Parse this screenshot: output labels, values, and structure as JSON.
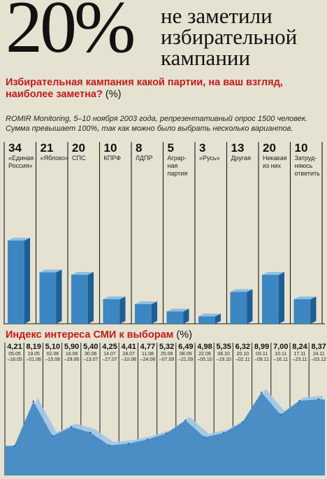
{
  "hero": {
    "big_number": "20%",
    "headline_lines": [
      "не заметили",
      "избирательной",
      "кампании"
    ]
  },
  "question1": {
    "text": "Избирательная кампания какой партии, на ваш взгляд, наиболее заметна?",
    "unit": "(%)"
  },
  "source": {
    "line1": "ROMIR Monitoring, 5–10 ноября 2003 года, репрезентативный опрос 1500 человек.",
    "line2": "Сумма превышает 100%, так как можно было выбрать несколько вариантов."
  },
  "question2": {
    "text": "Индекс интереса СМИ к выборам",
    "unit": "(%)"
  },
  "colors": {
    "background": "#e6e2d2",
    "bar_front": "#3c87c1",
    "bar_side": "#205d92",
    "bar_top": "#8cbfe2",
    "grid": "#1a1a1a",
    "accent_red": "#c31a1a",
    "area_fill": "#4b8ec6",
    "area_back": "#9cc6e6"
  },
  "chart_data": [
    {
      "type": "bar",
      "categories": [
        [
          "«Единая",
          "Россия»"
        ],
        [
          "«Яблоко»"
        ],
        [
          "СПС"
        ],
        [
          "КПРФ"
        ],
        [
          "ЛДПР"
        ],
        [
          "Аграр-",
          "ная",
          "партия"
        ],
        [
          "«Русь»"
        ],
        [
          "Другая"
        ],
        [
          "Никакая",
          "из них"
        ],
        [
          "Затруд-",
          "няюсь",
          "ответить"
        ]
      ],
      "values": [
        34,
        21,
        20,
        10,
        8,
        5,
        3,
        13,
        20,
        10
      ],
      "value_labels": [
        "34",
        "21",
        "20",
        "10",
        "8",
        "5",
        "3",
        "13",
        "20",
        "10"
      ],
      "ylim": [
        0,
        50
      ],
      "title": "Избирательная кампания какой партии, на ваш взгляд, наиболее заметна? (%)"
    },
    {
      "type": "area",
      "x": [
        "05.05 –18.05",
        "19.05 –01.06",
        "02.06 –15.06",
        "16.06 –29.06",
        "30.06 –13.07",
        "14.07 –27.07",
        "28.07 –10.08",
        "11.08 –24.08",
        "25.08 –07.09",
        "08.09 –21.09",
        "22.09 –05.10",
        "06.10 –19.10",
        "20.10 –02.11",
        "03.11 –09.11",
        "10.11 –16.11",
        "17.11 –23.11",
        "24.11 –03.12"
      ],
      "x_lines": [
        [
          "05.05",
          "–18.05"
        ],
        [
          "19.05",
          "–01.06"
        ],
        [
          "02.06",
          "–15.06"
        ],
        [
          "16.06",
          "–29.06"
        ],
        [
          "30.06",
          "–13.07"
        ],
        [
          "14.07",
          "–27.07"
        ],
        [
          "28.07",
          "–10.08"
        ],
        [
          "11.08",
          "–24.08"
        ],
        [
          "25.08",
          "–07.09"
        ],
        [
          "08.09",
          "–21.09"
        ],
        [
          "22.09",
          "–05.10"
        ],
        [
          "06.10",
          "–19.10"
        ],
        [
          "20.10",
          "–02.11"
        ],
        [
          "03.11",
          "–09.11"
        ],
        [
          "10.11",
          "–16.11"
        ],
        [
          "17.11",
          "–23.11"
        ],
        [
          "24.11",
          "–03.12"
        ]
      ],
      "values": [
        4.21,
        8.19,
        5.1,
        5.9,
        5.4,
        4.25,
        4.41,
        4.77,
        5.32,
        6.49,
        4.98,
        5.35,
        6.32,
        8.99,
        7.0,
        8.24,
        8.37
      ],
      "value_labels": [
        "4,21",
        "8,19",
        "5,10",
        "5,90",
        "5,40",
        "4,25",
        "4,41",
        "4,77",
        "5,32",
        "6,49",
        "4,98",
        "5,35",
        "6,32",
        "8,99",
        "7,00",
        "8,24",
        "8,37"
      ],
      "ylim": [
        2.5,
        10
      ],
      "title": "Индекс интереса СМИ к выборам (%)"
    }
  ]
}
